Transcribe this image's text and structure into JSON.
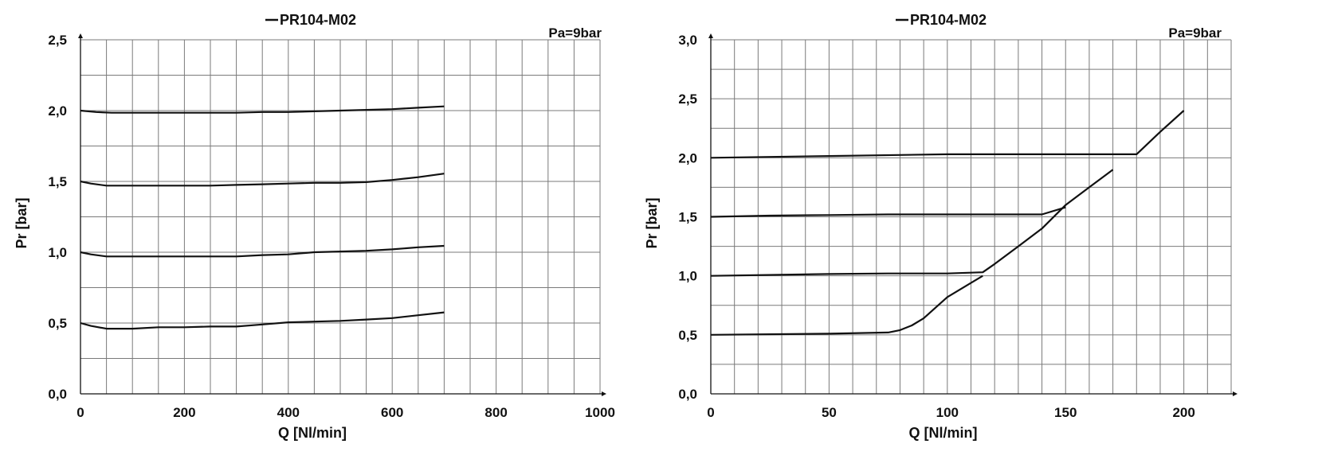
{
  "chart_data": [
    {
      "type": "line",
      "legend": [
        "PR104-M02"
      ],
      "annotation": "Pa=9bar",
      "xlabel": "Q [Nl/min]",
      "ylabel": "Pr [bar]",
      "xlim": [
        0,
        1000
      ],
      "ylim": [
        0,
        2.5
      ],
      "xticks": [
        0,
        200,
        400,
        600,
        800,
        1000
      ],
      "xtick_labels": [
        "0",
        "200",
        "400",
        "600",
        "800",
        "1000"
      ],
      "yticks": [
        0,
        0.5,
        1.0,
        1.5,
        2.0,
        2.5
      ],
      "ytick_labels": [
        "0,0",
        "0,5",
        "1,0",
        "1,5",
        "2,0",
        "2,5"
      ],
      "grid": true,
      "series": [
        {
          "x": [
            0,
            20,
            50,
            70,
            100,
            150,
            200,
            250,
            300,
            350,
            400,
            450,
            500,
            550,
            600,
            650,
            700
          ],
          "y": [
            0.5,
            0.48,
            0.46,
            0.46,
            0.46,
            0.47,
            0.47,
            0.475,
            0.475,
            0.49,
            0.505,
            0.51,
            0.515,
            0.525,
            0.535,
            0.555,
            0.575
          ]
        },
        {
          "x": [
            0,
            20,
            50,
            100,
            150,
            200,
            250,
            300,
            350,
            400,
            450,
            500,
            550,
            600,
            650,
            700
          ],
          "y": [
            1.0,
            0.985,
            0.97,
            0.97,
            0.97,
            0.97,
            0.97,
            0.97,
            0.98,
            0.985,
            1.0,
            1.005,
            1.01,
            1.02,
            1.035,
            1.045
          ]
        },
        {
          "x": [
            0,
            20,
            50,
            100,
            150,
            200,
            250,
            300,
            350,
            400,
            450,
            500,
            550,
            600,
            650,
            700
          ],
          "y": [
            1.5,
            1.485,
            1.47,
            1.47,
            1.47,
            1.47,
            1.47,
            1.475,
            1.48,
            1.485,
            1.49,
            1.49,
            1.495,
            1.51,
            1.53,
            1.555
          ]
        },
        {
          "x": [
            0,
            30,
            60,
            100,
            150,
            200,
            250,
            300,
            350,
            400,
            450,
            500,
            550,
            600,
            650,
            700
          ],
          "y": [
            2.0,
            1.99,
            1.985,
            1.985,
            1.985,
            1.985,
            1.985,
            1.985,
            1.99,
            1.99,
            1.995,
            2.0,
            2.005,
            2.01,
            2.02,
            2.03
          ]
        }
      ]
    },
    {
      "type": "line",
      "legend": [
        "PR104-M02"
      ],
      "annotation": "Pa=9bar",
      "xlabel": "Q [Nl/min]",
      "ylabel": "Pr [bar]",
      "xlim": [
        0,
        220
      ],
      "ylim": [
        0,
        3.0
      ],
      "xticks": [
        0,
        50,
        100,
        150,
        200
      ],
      "xtick_labels": [
        "0",
        "50",
        "100",
        "150",
        "200"
      ],
      "yticks": [
        0,
        0.5,
        1.0,
        1.5,
        2.0,
        2.5,
        3.0
      ],
      "ytick_labels": [
        "0,0",
        "0,5",
        "1,0",
        "1,5",
        "2,0",
        "2,5",
        "3,0"
      ],
      "grid": true,
      "series": [
        {
          "x": [
            0,
            25,
            50,
            75,
            80,
            85,
            90,
            100,
            110,
            115
          ],
          "y": [
            0.5,
            0.505,
            0.51,
            0.52,
            0.54,
            0.58,
            0.64,
            0.82,
            0.94,
            1.0
          ]
        },
        {
          "x": [
            0,
            50,
            75,
            100,
            115,
            120,
            130,
            140,
            150,
            160,
            170
          ],
          "y": [
            1.0,
            1.015,
            1.02,
            1.02,
            1.03,
            1.1,
            1.25,
            1.4,
            1.6,
            1.75,
            1.9
          ]
        },
        {
          "x": [
            0,
            25,
            50,
            75,
            100,
            120,
            140,
            150
          ],
          "y": [
            1.5,
            1.51,
            1.515,
            1.52,
            1.52,
            1.52,
            1.52,
            1.58
          ]
        },
        {
          "x": [
            0,
            50,
            100,
            120,
            150,
            170,
            180,
            190,
            200
          ],
          "y": [
            2.0,
            2.015,
            2.03,
            2.03,
            2.03,
            2.03,
            2.03,
            2.22,
            2.4
          ]
        }
      ]
    }
  ]
}
